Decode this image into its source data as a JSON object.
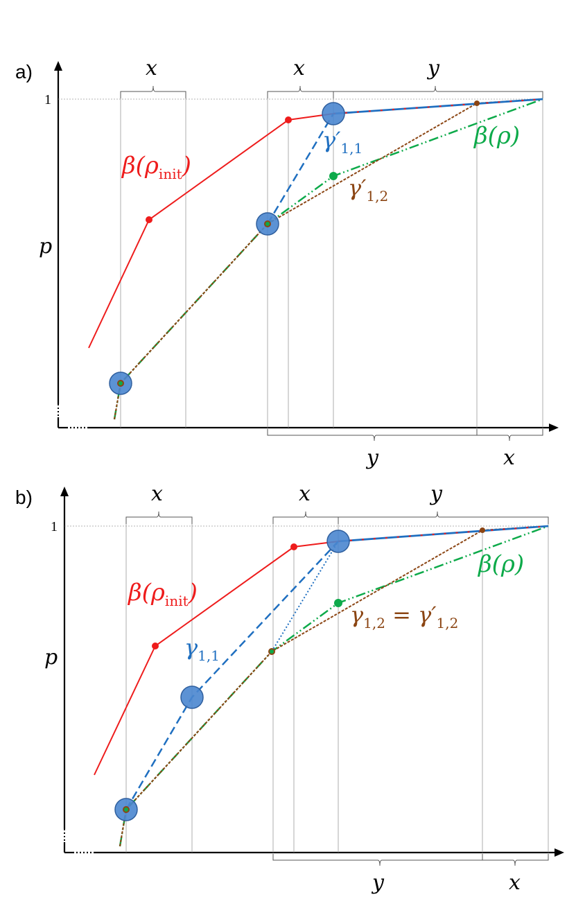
{
  "colors": {
    "red": "#ee1c1c",
    "blue": "#1f6fc0",
    "green": "#0daa4a",
    "brown": "#8b4513",
    "circle_fill": "#4a86cf",
    "circle_stroke": "#2f5f9e"
  },
  "panel_a": {
    "label": "a)",
    "y_tick": "1",
    "y_axis": "p",
    "top_braces": [
      "x",
      "x",
      "y"
    ],
    "bottom_braces": [
      "y",
      "x"
    ],
    "curve_labels": {
      "beta_init": {
        "base": "β(ρ",
        "sub": "init",
        "close": ")"
      },
      "beta": "β(ρ)",
      "gamma11": {
        "base": "γ′",
        "sub": "1,1"
      },
      "gamma12": {
        "base": "γ′",
        "sub": "1,2"
      }
    }
  },
  "panel_b": {
    "label": "b)",
    "y_tick": "1",
    "y_axis": "p",
    "top_braces": [
      "x",
      "x",
      "y"
    ],
    "bottom_braces": [
      "y",
      "x"
    ],
    "curve_labels": {
      "beta_init": {
        "base": "β(ρ",
        "sub": "init",
        "close": ")"
      },
      "beta": "β(ρ)",
      "gamma11": {
        "base": "γ",
        "sub": "1,1"
      },
      "gamma12": {
        "base": "γ",
        "sub": "1,2",
        "eq": " = γ′",
        "sub2": "1,2"
      }
    }
  }
}
